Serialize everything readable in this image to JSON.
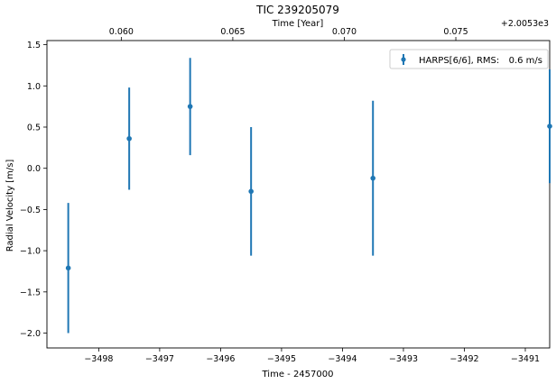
{
  "chart_data": {
    "type": "scatter",
    "title": "TIC 239205079",
    "xlabel": "Time - 2457000",
    "ylabel": "Radial Velocity [m/s]",
    "top_xlabel": "Time [Year]",
    "top_offset_label": "+2.0053e3",
    "xlim": [
      -3498.85,
      -3490.6
    ],
    "ylim": [
      -2.18,
      1.55
    ],
    "x_ticks": [
      -3498,
      -3497,
      -3496,
      -3495,
      -3494,
      -3493,
      -3492,
      -3491
    ],
    "x_tick_labels": [
      "−3498",
      "−3497",
      "−3496",
      "−3495",
      "−3494",
      "−3493",
      "−3492",
      "−3491"
    ],
    "y_ticks": [
      -2.0,
      -1.5,
      -1.0,
      -0.5,
      0.0,
      0.5,
      1.0,
      1.5
    ],
    "y_tick_labels": [
      "−2.0",
      "−1.5",
      "−1.0",
      "−0.5",
      "0.0",
      "0.5",
      "1.0",
      "1.5"
    ],
    "top_x_ticks": [
      {
        "x": -3497.63,
        "label": "0.060"
      },
      {
        "x": -3495.8,
        "label": "0.065"
      },
      {
        "x": -3493.97,
        "label": "0.070"
      },
      {
        "x": -3492.14,
        "label": "0.075"
      }
    ],
    "grid": false,
    "legend_position": "top-right",
    "series": [
      {
        "name": "HARPS[6/6], RMS:",
        "rms_label": "0.6 m/s",
        "color": "#1f77b4",
        "points": [
          {
            "x": -3498.5,
            "y": -1.21,
            "err": 0.79
          },
          {
            "x": -3497.5,
            "y": 0.36,
            "err": 0.62
          },
          {
            "x": -3496.5,
            "y": 0.75,
            "err": 0.59
          },
          {
            "x": -3495.5,
            "y": -0.28,
            "err": 0.78
          },
          {
            "x": -3493.5,
            "y": -0.12,
            "err": 0.94
          },
          {
            "x": -3490.6,
            "y": 0.51,
            "err": 0.69
          }
        ]
      }
    ]
  }
}
